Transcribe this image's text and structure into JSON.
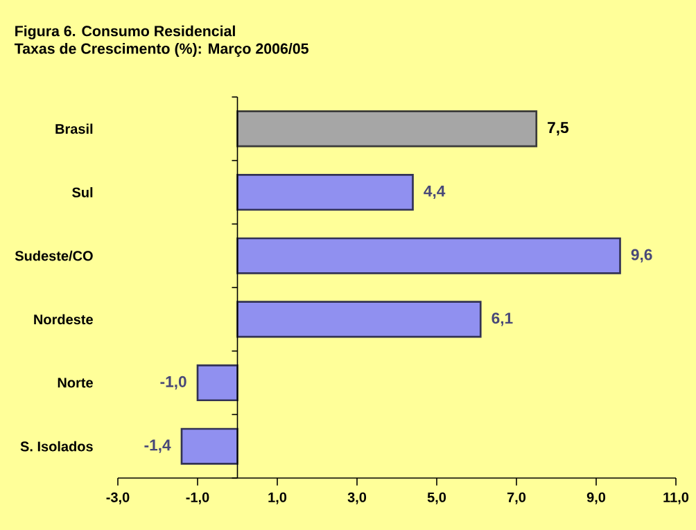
{
  "chart_data": {
    "type": "bar",
    "orientation": "horizontal",
    "title": "Figura 6. Consumo Residencial",
    "subtitle": "Taxas de Crescimento (%): Março 2006/05",
    "categories": [
      "Brasil",
      "Sul",
      "Sudeste/CO",
      "Nordeste",
      "Norte",
      "S. Isolados"
    ],
    "values": [
      7.5,
      4.4,
      9.6,
      6.1,
      -1.0,
      -1.4
    ],
    "value_labels": [
      "7,5",
      "4,4",
      "9,6",
      "6,1",
      "-1,0",
      "-1,4"
    ],
    "colors": [
      "#a6a6a6",
      "#9090f0",
      "#9090f0",
      "#9090f0",
      "#9090f0",
      "#9090f0"
    ],
    "xlim": [
      -3,
      11
    ],
    "xticks": [
      {
        "value": -3,
        "label": "-3,0"
      },
      {
        "value": -1,
        "label": "-1,0"
      },
      {
        "value": 1,
        "label": "1,0"
      },
      {
        "value": 3,
        "label": "3,0"
      },
      {
        "value": 5,
        "label": "5,0"
      },
      {
        "value": 7,
        "label": "7,0"
      },
      {
        "value": 9,
        "label": "9,0"
      },
      {
        "value": 11,
        "label": "11,0"
      }
    ],
    "grid": false
  }
}
